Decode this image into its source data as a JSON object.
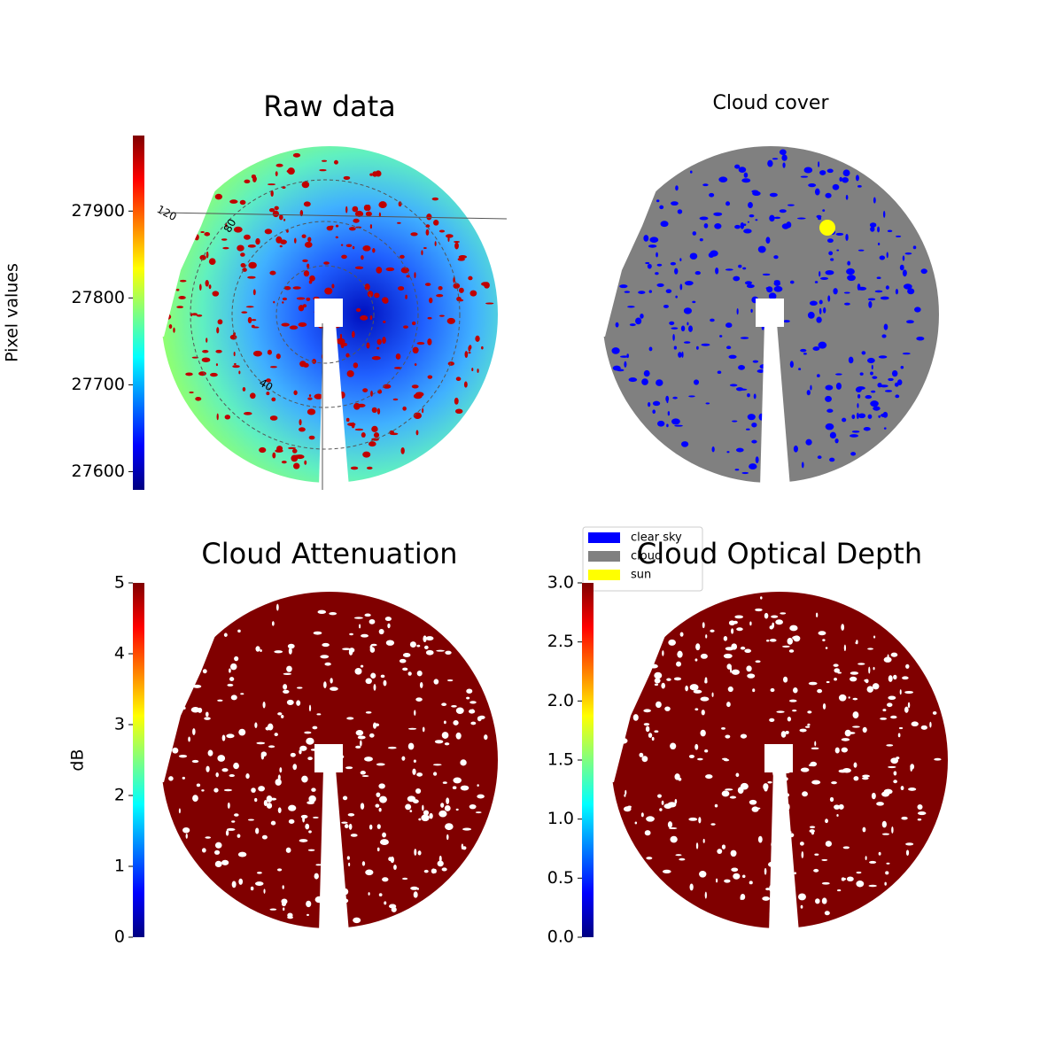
{
  "chart_data": [
    {
      "type": "image",
      "title": "Raw data",
      "colorbar_label": "Pixel values",
      "colormap": "jet",
      "ylim": [
        27579,
        27987
      ],
      "yticks": [
        27600,
        27700,
        27800,
        27900
      ],
      "annotations": [
        "120",
        "80",
        "40"
      ]
    },
    {
      "type": "image",
      "title": "Cloud cover",
      "legend": [
        {
          "name": "clear sky",
          "color": "#0000ff"
        },
        {
          "name": "cloud",
          "color": "#808080"
        },
        {
          "name": "sun",
          "color": "#ffff00"
        }
      ]
    },
    {
      "type": "image",
      "title": "Cloud Attenuation",
      "colorbar_label": "dB",
      "colormap": "jet",
      "ylim": [
        0,
        5
      ],
      "yticks": [
        0,
        1,
        2,
        3,
        4,
        5
      ]
    },
    {
      "type": "image",
      "title": "Cloud Optical Depth",
      "colormap": "jet",
      "ylim": [
        0,
        3
      ],
      "yticks": [
        {
          "value": 0,
          "label": "0.0"
        },
        0.5,
        {
          "value": 1,
          "label": "1.0"
        },
        1.5,
        {
          "value": 2,
          "label": "2.0"
        },
        2.5,
        {
          "value": 3,
          "label": "3.0"
        }
      ]
    }
  ]
}
